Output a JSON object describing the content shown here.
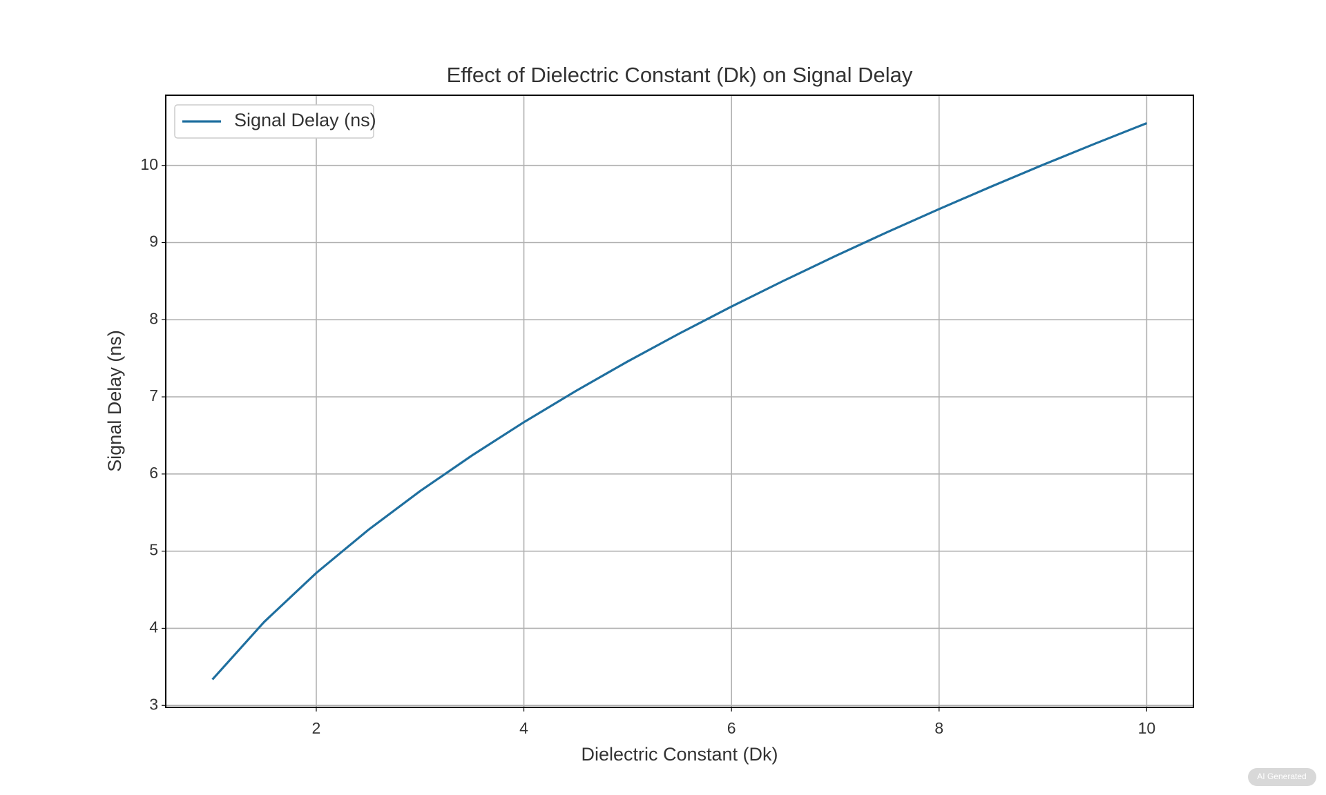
{
  "chart_data": {
    "type": "line",
    "title": "Effect of Dielectric Constant (Dk) on Signal Delay",
    "x_label": "Dielectric Constant (Dk)",
    "y_label": "Signal Delay (ns)",
    "x": [
      1,
      1.5,
      2,
      2.5,
      3,
      3.5,
      4,
      4.5,
      5,
      5.5,
      6,
      6.5,
      7,
      7.5,
      8,
      8.5,
      9,
      9.5,
      10
    ],
    "series": [
      {
        "name": "Signal Delay (ns)",
        "color": "#1f6f9f",
        "values": [
          3.336,
          4.085,
          4.717,
          5.274,
          5.778,
          6.24,
          6.671,
          7.076,
          7.459,
          7.823,
          8.171,
          8.504,
          8.825,
          9.135,
          9.435,
          9.725,
          10.007,
          10.281,
          10.548
        ]
      }
    ],
    "xlim": [
      0.55,
      10.45
    ],
    "ylim": [
      2.975,
      10.91
    ],
    "xticks": [
      2,
      4,
      6,
      8,
      10
    ],
    "yticks": [
      3,
      4,
      5,
      6,
      7,
      8,
      9,
      10
    ],
    "grid": true,
    "legend": "upper left"
  },
  "badge": "AI Generated"
}
